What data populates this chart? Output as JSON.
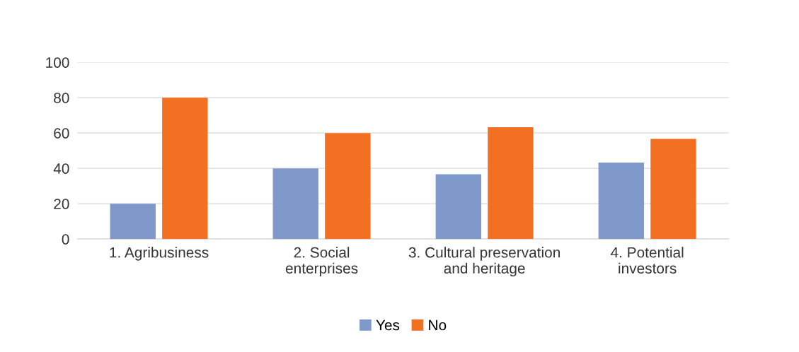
{
  "chart_data": {
    "type": "bar",
    "categories": [
      "1. Agribusiness",
      "2. Social\nenterprises",
      "3. Cultural preservation\nand heritage",
      "4. Potential\ninvestors"
    ],
    "series": [
      {
        "name": "Yes",
        "color": "#8099cb",
        "values": [
          20,
          40,
          36.7,
          43.3
        ]
      },
      {
        "name": "No",
        "color": "#f37022",
        "values": [
          80,
          60,
          63.3,
          56.7
        ]
      }
    ],
    "ylim": [
      0,
      100
    ],
    "yticks": [
      0,
      20,
      40,
      60,
      80,
      100
    ],
    "grid": "y",
    "legend": "bottom"
  }
}
